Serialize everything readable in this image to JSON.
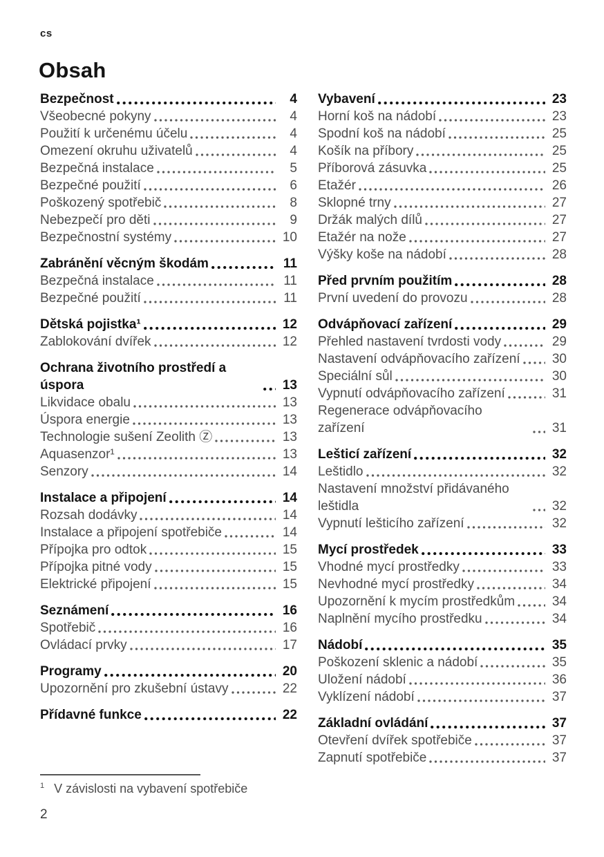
{
  "page": {
    "language_code": "cs",
    "title": "Obsah",
    "page_number": "2",
    "footnote": {
      "marker": "1",
      "text": "V závislosti na vybavení spotřebiče"
    }
  },
  "toc": {
    "columns": [
      {
        "sections": [
          {
            "title": {
              "label": "Bezpečnost",
              "page": "4"
            },
            "items": [
              {
                "label": "Všeobecné pokyny",
                "page": "4"
              },
              {
                "label": "Použití k určenému účelu",
                "page": "4"
              },
              {
                "label": "Omezení okruhu uživatelů",
                "page": "4"
              },
              {
                "label": "Bezpečná instalace",
                "page": "5"
              },
              {
                "label": "Bezpečné použití",
                "page": "6"
              },
              {
                "label": "Poškozený spotřebič",
                "page": "8"
              },
              {
                "label": "Nebezpečí pro děti",
                "page": "9"
              },
              {
                "label": "Bezpečnostní systémy",
                "page": "10"
              }
            ]
          },
          {
            "title": {
              "label": "Zabránění věcným škodám",
              "page": "11"
            },
            "items": [
              {
                "label": "Bezpečná instalace",
                "page": "11"
              },
              {
                "label": "Bezpečné použití",
                "page": "11"
              }
            ]
          },
          {
            "title": {
              "label": "Dětská pojistka¹",
              "page": "12"
            },
            "items": [
              {
                "label": "Zablokování dvířek",
                "page": "12"
              }
            ]
          },
          {
            "title": {
              "label": "Ochrana životního prostředí a úspora",
              "page": "13"
            },
            "items": [
              {
                "label": "Likvidace obalu",
                "page": "13"
              },
              {
                "label": "Úspora energie",
                "page": "13"
              },
              {
                "label": "Technologie sušení Zeolith Ⓩ",
                "page": "13"
              },
              {
                "label": "Aquasenzor¹",
                "page": "13"
              },
              {
                "label": "Senzory",
                "page": "14"
              }
            ]
          },
          {
            "title": {
              "label": "Instalace a připojení",
              "page": "14"
            },
            "items": [
              {
                "label": "Rozsah dodávky",
                "page": "14"
              },
              {
                "label": "Instalace a připojení spotřebiče",
                "page": "14"
              },
              {
                "label": "Přípojka pro odtok",
                "page": "15"
              },
              {
                "label": "Přípojka pitné vody",
                "page": "15"
              },
              {
                "label": "Elektrické připojení",
                "page": "15"
              }
            ]
          },
          {
            "title": {
              "label": "Seznámení",
              "page": "16"
            },
            "items": [
              {
                "label": "Spotřebič",
                "page": "16"
              },
              {
                "label": "Ovládací prvky",
                "page": "17"
              }
            ]
          },
          {
            "title": {
              "label": "Programy",
              "page": "20"
            },
            "items": [
              {
                "label": "Upozornění pro zkušební ústavy",
                "page": "22"
              }
            ]
          },
          {
            "title": {
              "label": "Přídavné funkce",
              "page": "22"
            },
            "items": []
          }
        ]
      },
      {
        "sections": [
          {
            "title": {
              "label": "Vybavení",
              "page": "23"
            },
            "items": [
              {
                "label": "Horní koš na nádobí",
                "page": "23"
              },
              {
                "label": "Spodní koš na nádobí",
                "page": "25"
              },
              {
                "label": "Košík na příbory",
                "page": "25"
              },
              {
                "label": "Příborová zásuvka",
                "page": "25"
              },
              {
                "label": "Etažér",
                "page": "26"
              },
              {
                "label": "Sklopné trny",
                "page": "27"
              },
              {
                "label": "Držák malých dílů",
                "page": "27"
              },
              {
                "label": "Etažér na nože",
                "page": "27"
              },
              {
                "label": "Výšky koše na nádobí",
                "page": "28"
              }
            ]
          },
          {
            "title": {
              "label": "Před prvním použitím",
              "page": "28"
            },
            "items": [
              {
                "label": "První uvedení do provozu",
                "page": "28"
              }
            ]
          },
          {
            "title": {
              "label": "Odvápňovací zařízení",
              "page": "29"
            },
            "items": [
              {
                "label": "Přehled nastavení tvrdosti vody",
                "page": "29"
              },
              {
                "label": "Nastavení odvápňovacího zařízení",
                "page": "30"
              },
              {
                "label": "Speciální sůl",
                "page": "30"
              },
              {
                "label": "Vypnutí odvápňovacího zařízení",
                "page": "31"
              },
              {
                "label": "Regenerace odvápňovacího zařízení",
                "page": "31"
              }
            ]
          },
          {
            "title": {
              "label": "Lešticí zařízení",
              "page": "32"
            },
            "items": [
              {
                "label": "Leštidlo",
                "page": "32"
              },
              {
                "label": "Nastavení množství přidávaného leštidla",
                "page": "32"
              },
              {
                "label": "Vypnutí lešticího zařízení",
                "page": "32"
              }
            ]
          },
          {
            "title": {
              "label": "Mycí prostředek",
              "page": "33"
            },
            "items": [
              {
                "label": "Vhodné mycí prostředky",
                "page": "33"
              },
              {
                "label": "Nevhodné mycí prostředky",
                "page": "34"
              },
              {
                "label": "Upozornění k mycím prostředkům",
                "page": "34"
              },
              {
                "label": "Naplnění mycího prostředku",
                "page": "34"
              }
            ]
          },
          {
            "title": {
              "label": "Nádobí",
              "page": "35"
            },
            "items": [
              {
                "label": "Poškození sklenic a nádobí",
                "page": "35"
              },
              {
                "label": "Uložení nádobí",
                "page": "36"
              },
              {
                "label": "Vyklízení nádobí",
                "page": "37"
              }
            ]
          },
          {
            "title": {
              "label": "Základní ovládání",
              "page": "37"
            },
            "items": [
              {
                "label": "Otevření dvířek spotřebiče",
                "page": "37"
              },
              {
                "label": "Zapnutí spotřebiče",
                "page": "37"
              }
            ]
          }
        ]
      }
    ]
  }
}
